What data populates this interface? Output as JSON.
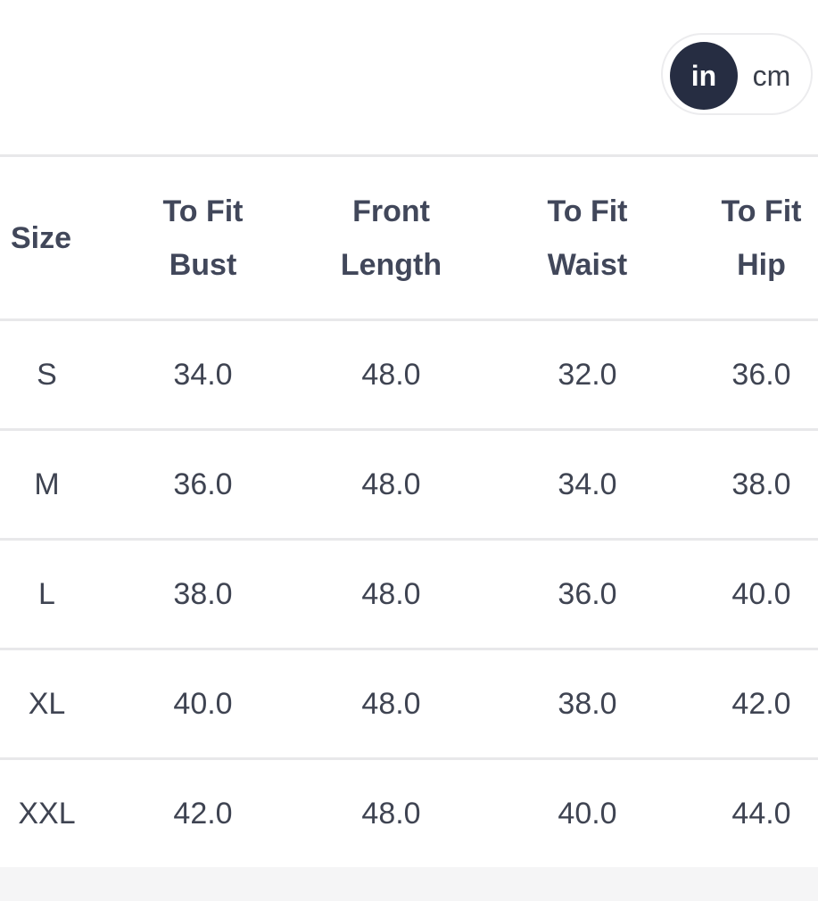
{
  "unit_toggle": {
    "options": [
      "in",
      "cm"
    ],
    "selected": "in"
  },
  "table": {
    "headers": [
      [
        "Size"
      ],
      [
        "To Fit",
        "Bust"
      ],
      [
        "Front",
        "Length"
      ],
      [
        "To Fit",
        "Waist"
      ],
      [
        "To Fit",
        "Hip"
      ]
    ],
    "rows": [
      [
        "S",
        "34.0",
        "48.0",
        "32.0",
        "36.0"
      ],
      [
        "M",
        "36.0",
        "48.0",
        "34.0",
        "38.0"
      ],
      [
        "L",
        "38.0",
        "48.0",
        "36.0",
        "40.0"
      ],
      [
        "XL",
        "40.0",
        "48.0",
        "38.0",
        "42.0"
      ],
      [
        "XXL",
        "42.0",
        "48.0",
        "40.0",
        "44.0"
      ]
    ]
  }
}
